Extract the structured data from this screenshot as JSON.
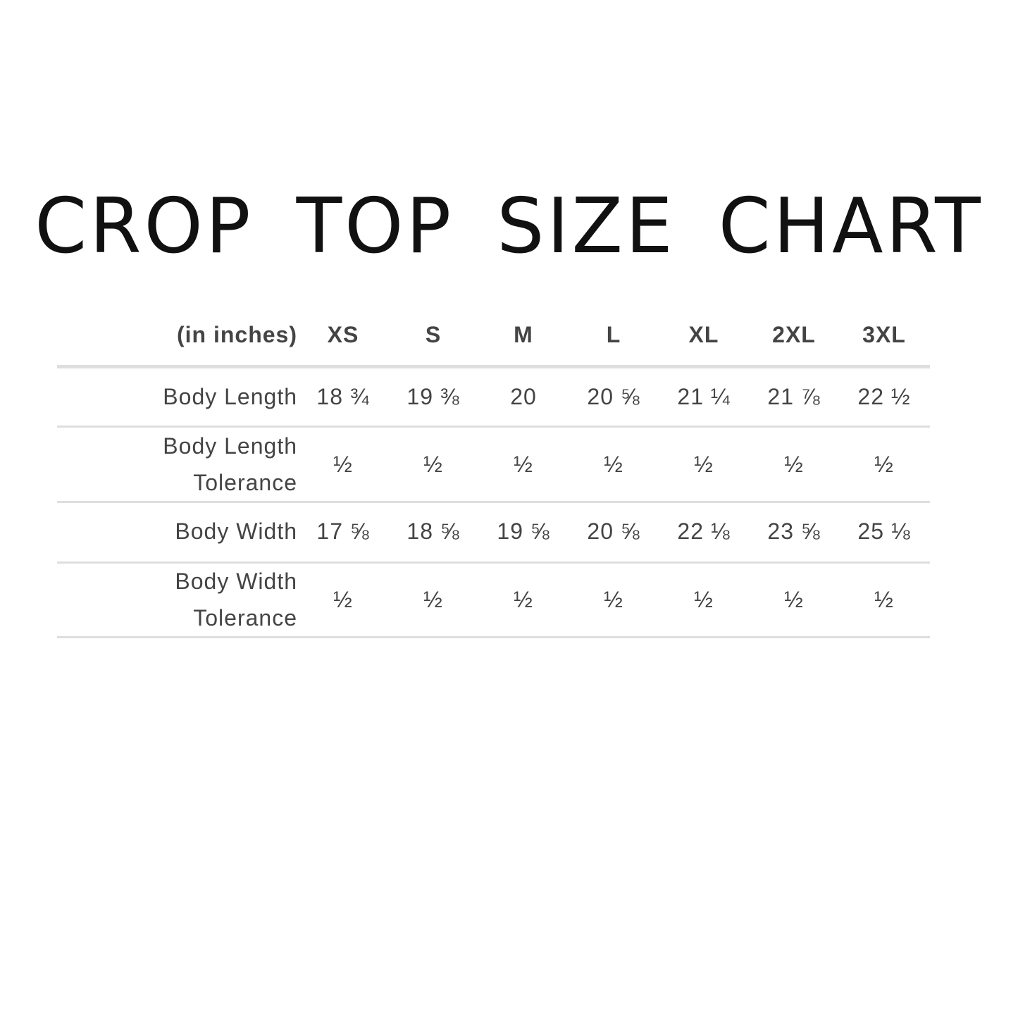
{
  "title": "CROP TOP SIZE CHART",
  "table": {
    "unit_label": "(in inches)",
    "columns": [
      "XS",
      "S",
      "M",
      "L",
      "XL",
      "2XL",
      "3XL"
    ],
    "rows": [
      {
        "label_lines": [
          "Body Length"
        ],
        "values": [
          "18 ¾",
          "19 ⅜",
          "20",
          "20 ⅝",
          "21 ¼",
          "21 ⅞",
          "22 ½"
        ]
      },
      {
        "label_lines": [
          "Body Length",
          "Tolerance"
        ],
        "values": [
          "½",
          "½",
          "½",
          "½",
          "½",
          "½",
          "½"
        ]
      },
      {
        "label_lines": [
          "Body Width"
        ],
        "values": [
          "17 ⅝",
          "18 ⅝",
          "19 ⅝",
          "20 ⅝",
          "22 ⅛",
          "23 ⅝",
          "25 ⅛"
        ]
      },
      {
        "label_lines": [
          "Body Width",
          "Tolerance"
        ],
        "values": [
          "½",
          "½",
          "½",
          "½",
          "½",
          "½",
          "½"
        ]
      }
    ]
  },
  "colors": {
    "text": "#444444",
    "title": "#111111",
    "rule": "#dedede"
  }
}
